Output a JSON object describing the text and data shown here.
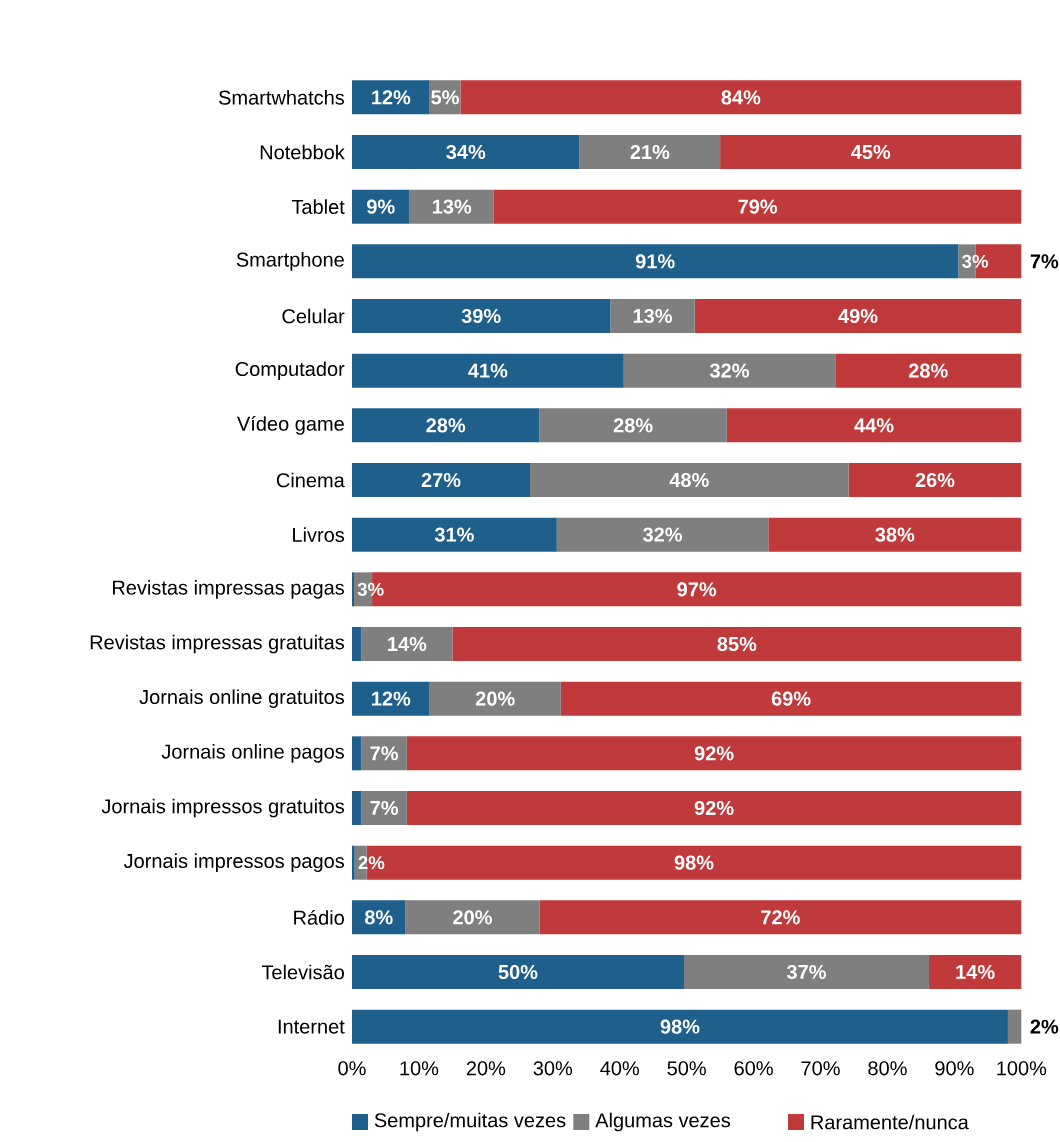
{
  "chart_data": {
    "type": "bar",
    "orientation": "horizontal",
    "stacked": true,
    "legend": "bottom",
    "categories": [
      "Smartwhatchs",
      "Notebbok",
      "Tablet",
      "Smartphone",
      "Celular",
      "Computador",
      "Vídeo game",
      "Cinema",
      "Livros",
      "Revistas impressas pagas",
      "Revistas impressas gratuitas",
      "Jornais online gratuitos",
      "Jornais online pagos",
      "Jornais impressos gratuitos",
      "Jornais impressos pagos",
      "Rádio",
      "Televisão",
      "Internet"
    ],
    "xlim": [
      0,
      100
    ],
    "xticks": [
      {
        "value": 0,
        "label": "0%"
      },
      {
        "value": 10,
        "label": "10%"
      },
      {
        "value": 20,
        "label": "20%"
      },
      {
        "value": 30,
        "label": "30%"
      },
      {
        "value": 40,
        "label": "40%"
      },
      {
        "value": 50,
        "label": "50%"
      },
      {
        "value": 60,
        "label": "60%"
      },
      {
        "value": 70,
        "label": "70%"
      },
      {
        "value": 80,
        "label": "80%"
      },
      {
        "value": 90,
        "label": "90%"
      },
      {
        "value": 100,
        "label": "100%"
      }
    ],
    "series": [
      {
        "name": "Sempre/muitas vezes",
        "color": "#1f5f8b",
        "values": [
          11.6,
          34,
          8.6,
          90.6,
          38.6,
          40.6,
          28,
          26.6,
          30.6,
          0.3,
          1.4,
          11.6,
          1.4,
          1.4,
          0.4,
          8,
          49.6,
          98
        ],
        "value_labels": [
          "12%",
          "34%",
          "9%",
          "91%",
          "39%",
          "41%",
          "28%",
          "27%",
          "31%",
          null,
          null,
          "12%",
          null,
          null,
          null,
          "8%",
          "50%",
          "98%"
        ]
      },
      {
        "name": "Algumas vezes",
        "color": "#7f7f7f",
        "values": [
          4.6,
          21,
          12.6,
          2.6,
          12.6,
          31.6,
          28,
          47.6,
          31.6,
          2.7,
          13.6,
          19.6,
          6.8,
          6.8,
          1.8,
          20,
          36.6,
          2
        ],
        "value_labels": [
          "5%",
          "21%",
          "13%",
          "3%",
          "13%",
          "32%",
          "28%",
          "48%",
          "32%",
          "3%",
          "14%",
          "20%",
          "7%",
          "7%",
          "2%",
          "20%",
          "37%",
          "2%"
        ]
      },
      {
        "name": "Raramente/nunca",
        "color": "#c0393b",
        "values": [
          83.8,
          45,
          78.8,
          6.8,
          48.8,
          27.8,
          44,
          25.8,
          37.8,
          97,
          85,
          68.8,
          91.8,
          91.8,
          97.8,
          72,
          13.8,
          0
        ],
        "value_labels": [
          "84%",
          "45%",
          "79%",
          "7%",
          "49%",
          "28%",
          "44%",
          "26%",
          "38%",
          "97%",
          "85%",
          "69%",
          "92%",
          "92%",
          "98%",
          "72%",
          "14%",
          null
        ]
      }
    ]
  }
}
